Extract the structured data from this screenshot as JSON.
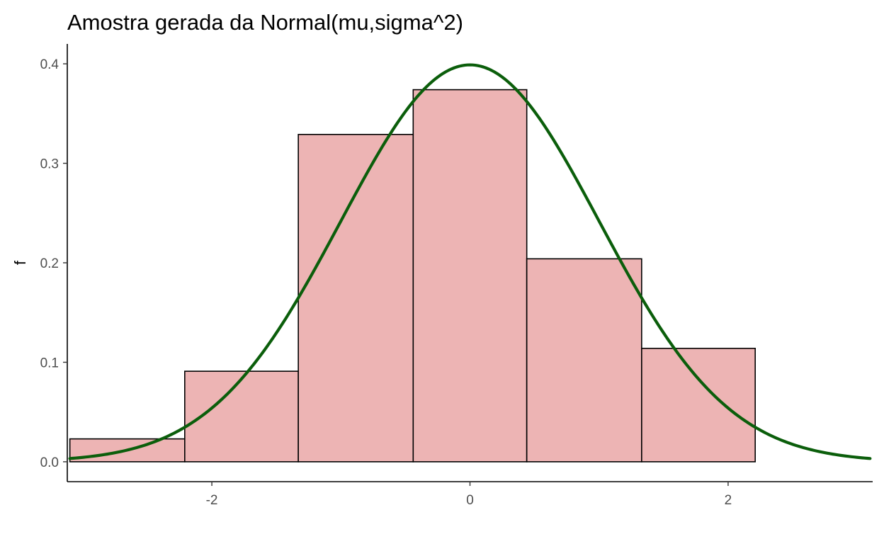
{
  "chart_data": {
    "type": "bar",
    "title": "Amostra gerada da Normal(mu,sigma^2)",
    "xlabel": "",
    "ylabel": "f",
    "xlim": [
      -3.12,
      3.12
    ],
    "ylim": [
      -0.02,
      0.42
    ],
    "x_ticks": [
      -2,
      0,
      2
    ],
    "x_tick_labels": [
      "-2",
      "0",
      "2"
    ],
    "y_ticks": [
      0,
      0.1,
      0.2,
      0.3,
      0.4
    ],
    "y_tick_labels": [
      "0.0",
      "0.1",
      "0.2",
      "0.3",
      "0.4"
    ],
    "grid": false,
    "legend": "none",
    "histogram": {
      "bins": [
        {
          "x0": -3.1,
          "x1": -2.21,
          "density": 0.023
        },
        {
          "x0": -2.21,
          "x1": -1.33,
          "density": 0.091
        },
        {
          "x0": -1.33,
          "x1": -0.44,
          "density": 0.329
        },
        {
          "x0": -0.44,
          "x1": 0.44,
          "density": 0.374
        },
        {
          "x0": 0.44,
          "x1": 1.33,
          "density": 0.204
        },
        {
          "x0": 1.33,
          "x1": 2.21,
          "density": 0.114
        }
      ],
      "fill": "#edb4b4",
      "stroke": "#000000"
    },
    "curve": {
      "type": "line",
      "function": "normal_density",
      "mean": 0,
      "sd": 1,
      "x_range": [
        -3.1,
        3.1
      ],
      "color": "#0b5e0b"
    }
  }
}
